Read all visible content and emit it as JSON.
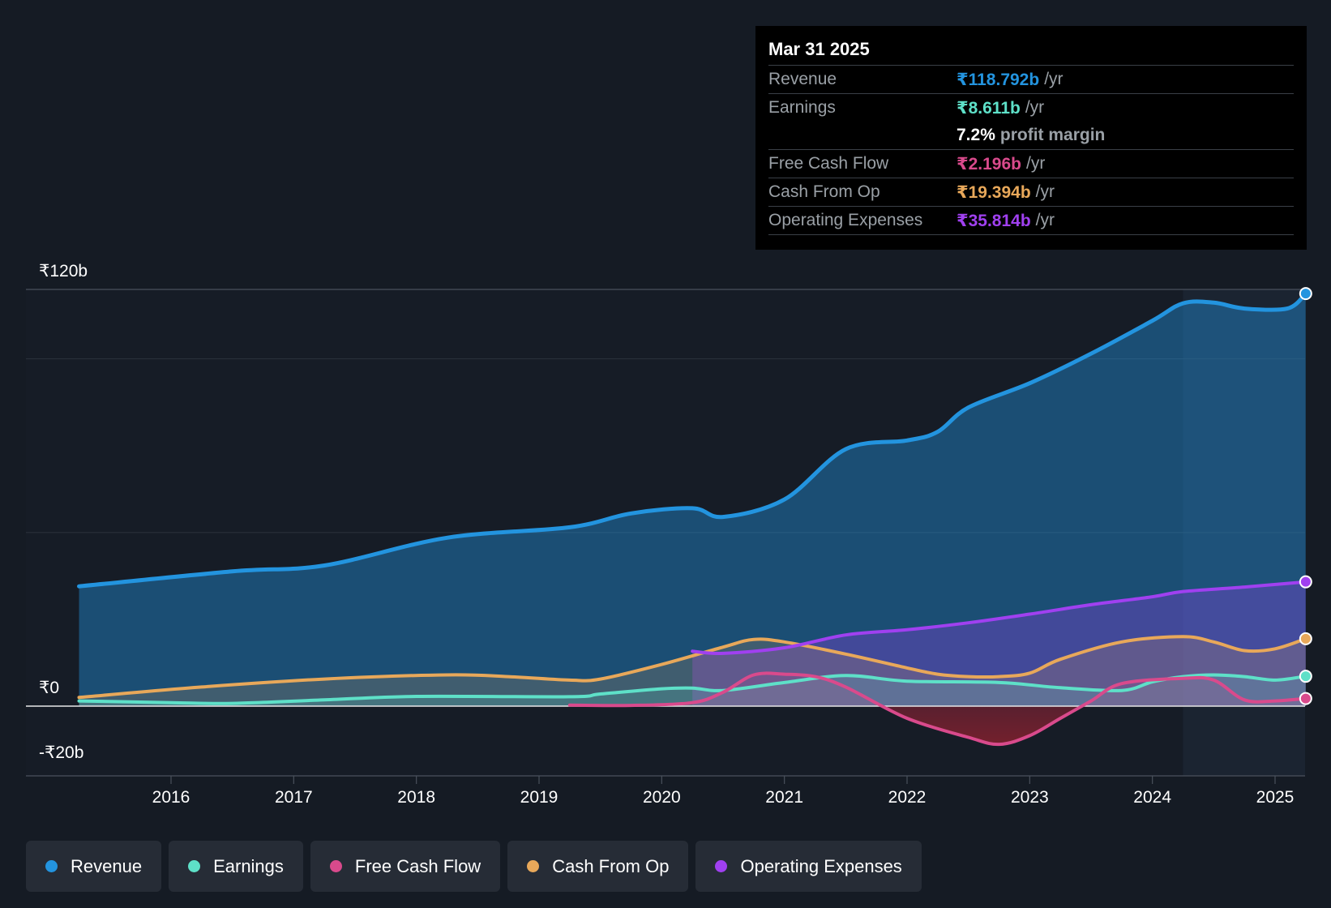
{
  "chart_data": {
    "type": "line",
    "title": "",
    "xlabel": "",
    "ylabel": "",
    "ylim": [
      -20,
      120
    ],
    "y_tick_labels": [
      {
        "value": 120,
        "label": "₹120b"
      },
      {
        "value": 0,
        "label": "₹0"
      },
      {
        "value": -20,
        "label": "-₹20b"
      }
    ],
    "gridlines": [
      100,
      50
    ],
    "xlim": [
      2015.25,
      2025.25
    ],
    "x_ticks": [
      {
        "value": 2016,
        "label": "2016"
      },
      {
        "value": 2017,
        "label": "2017"
      },
      {
        "value": 2018,
        "label": "2018"
      },
      {
        "value": 2019,
        "label": "2019"
      },
      {
        "value": 2020,
        "label": "2020"
      },
      {
        "value": 2021,
        "label": "2021"
      },
      {
        "value": 2022,
        "label": "2022"
      },
      {
        "value": 2023,
        "label": "2023"
      },
      {
        "value": 2024,
        "label": "2024"
      },
      {
        "value": 2025,
        "label": "2025"
      }
    ],
    "highlight_from": 2024.25,
    "series": [
      {
        "name": "Revenue",
        "color": "#2394df",
        "fill": true,
        "end_marker": true,
        "points": [
          [
            2015.25,
            34.5
          ],
          [
            2016.5,
            38.8
          ],
          [
            2017.25,
            40.5
          ],
          [
            2018.25,
            48.5
          ],
          [
            2019.25,
            51.5
          ],
          [
            2019.75,
            55.5
          ],
          [
            2020.25,
            57
          ],
          [
            2020.5,
            54.5
          ],
          [
            2021,
            59.5
          ],
          [
            2021.5,
            74
          ],
          [
            2022,
            76.5
          ],
          [
            2022.25,
            79
          ],
          [
            2022.5,
            86
          ],
          [
            2023,
            93
          ],
          [
            2023.5,
            101.5
          ],
          [
            2024,
            111
          ],
          [
            2024.25,
            116
          ],
          [
            2024.5,
            116.2
          ],
          [
            2024.75,
            114.5
          ],
          [
            2025.1,
            114.5
          ],
          [
            2025.25,
            118.8
          ]
        ]
      },
      {
        "name": "Operating Expenses",
        "color": "#a040f0",
        "fill": true,
        "end_marker": true,
        "points": [
          [
            2020.25,
            15.8
          ],
          [
            2020.5,
            15.2
          ],
          [
            2021,
            16.8
          ],
          [
            2021.5,
            20.5
          ],
          [
            2022,
            22
          ],
          [
            2022.5,
            24
          ],
          [
            2023,
            26.5
          ],
          [
            2023.5,
            29.2
          ],
          [
            2024,
            31.5
          ],
          [
            2024.25,
            33
          ],
          [
            2024.75,
            34.3
          ],
          [
            2025.25,
            35.8
          ]
        ]
      },
      {
        "name": "Cash From Op",
        "color": "#e8a85a",
        "fill": true,
        "end_marker": true,
        "points": [
          [
            2015.25,
            2.5
          ],
          [
            2016.25,
            5.5
          ],
          [
            2017.25,
            7.8
          ],
          [
            2018.25,
            9
          ],
          [
            2018.75,
            8.5
          ],
          [
            2019.25,
            7.5
          ],
          [
            2019.5,
            7.8
          ],
          [
            2020,
            12
          ],
          [
            2020.5,
            17
          ],
          [
            2020.75,
            19.2
          ],
          [
            2021,
            18.5
          ],
          [
            2021.5,
            15
          ],
          [
            2022,
            11
          ],
          [
            2022.25,
            9.2
          ],
          [
            2022.5,
            8.5
          ],
          [
            2022.75,
            8.5
          ],
          [
            2023,
            9.5
          ],
          [
            2023.25,
            13.5
          ],
          [
            2023.75,
            18.5
          ],
          [
            2024.25,
            20
          ],
          [
            2024.5,
            18.5
          ],
          [
            2024.75,
            16
          ],
          [
            2025,
            16.5
          ],
          [
            2025.25,
            19.4
          ]
        ]
      },
      {
        "name": "Earnings",
        "color": "#5ee0c8",
        "fill": true,
        "end_marker": true,
        "points": [
          [
            2015.25,
            1.5
          ],
          [
            2016,
            1
          ],
          [
            2016.5,
            0.8
          ],
          [
            2017.25,
            1.8
          ],
          [
            2018,
            2.8
          ],
          [
            2019.25,
            2.7
          ],
          [
            2019.5,
            3.5
          ],
          [
            2020,
            5
          ],
          [
            2020.25,
            5.2
          ],
          [
            2020.5,
            4.5
          ],
          [
            2021,
            6.8
          ],
          [
            2021.5,
            8.8
          ],
          [
            2022,
            7.2
          ],
          [
            2022.75,
            6.8
          ],
          [
            2023.25,
            5.3
          ],
          [
            2023.75,
            4.5
          ],
          [
            2024,
            7
          ],
          [
            2024.25,
            8.5
          ],
          [
            2024.5,
            9
          ],
          [
            2024.75,
            8.5
          ],
          [
            2025,
            7.5
          ],
          [
            2025.25,
            8.6
          ]
        ]
      },
      {
        "name": "Free Cash Flow",
        "color": "#d94a8c",
        "fill": true,
        "end_marker": true,
        "points": [
          [
            2019.25,
            0.3
          ],
          [
            2019.75,
            0.2
          ],
          [
            2020.25,
            1
          ],
          [
            2020.5,
            4
          ],
          [
            2020.75,
            9
          ],
          [
            2021,
            9.2
          ],
          [
            2021.25,
            8.5
          ],
          [
            2021.5,
            5.5
          ],
          [
            2022,
            -3.5
          ],
          [
            2022.5,
            -9
          ],
          [
            2022.75,
            -11
          ],
          [
            2023,
            -8.5
          ],
          [
            2023.25,
            -3.5
          ],
          [
            2023.5,
            1.5
          ],
          [
            2023.75,
            6.5
          ],
          [
            2024.25,
            8
          ],
          [
            2024.5,
            7.5
          ],
          [
            2024.75,
            1.8
          ],
          [
            2025,
            1.5
          ],
          [
            2025.25,
            2.2
          ]
        ]
      }
    ]
  },
  "tooltip": {
    "date": "Mar 31 2025",
    "rows": [
      {
        "label": "Revenue",
        "value": "₹118.792b",
        "unit": "/yr",
        "color": "#2394df"
      },
      {
        "label": "Earnings",
        "value": "₹8.611b",
        "unit": "/yr",
        "color": "#5ee0c8"
      },
      {
        "label": "",
        "value": "7.2%",
        "unit": "profit margin",
        "color": "#ffffff"
      },
      {
        "label": "Free Cash Flow",
        "value": "₹2.196b",
        "unit": "/yr",
        "color": "#d94a8c"
      },
      {
        "label": "Cash From Op",
        "value": "₹19.394b",
        "unit": "/yr",
        "color": "#e8a85a"
      },
      {
        "label": "Operating Expenses",
        "value": "₹35.814b",
        "unit": "/yr",
        "color": "#a040f0"
      }
    ]
  },
  "legend": [
    {
      "label": "Revenue",
      "color": "#2394df"
    },
    {
      "label": "Earnings",
      "color": "#5ee0c8"
    },
    {
      "label": "Free Cash Flow",
      "color": "#d94a8c"
    },
    {
      "label": "Cash From Op",
      "color": "#e8a85a"
    },
    {
      "label": "Operating Expenses",
      "color": "#a040f0"
    }
  ]
}
